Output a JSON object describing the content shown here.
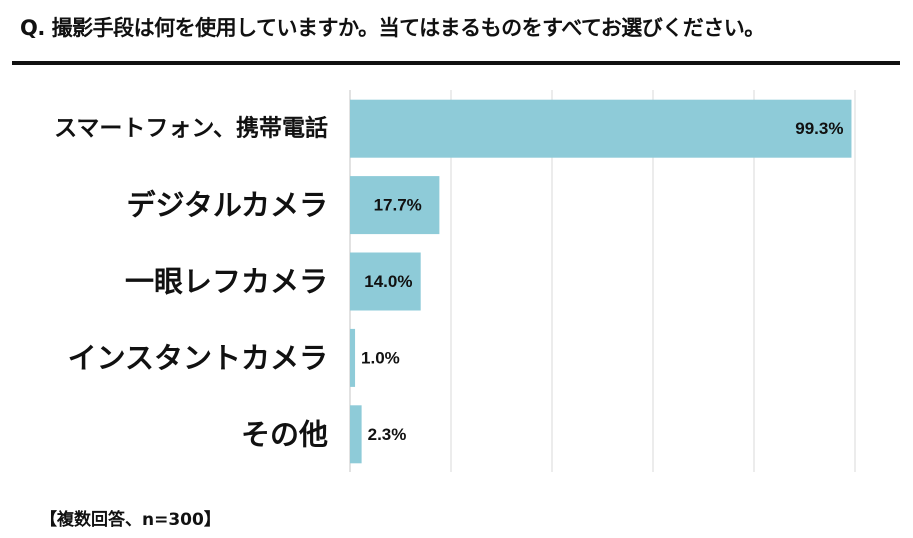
{
  "question": "Q. 撮影手段は何を使用していますか。当てはまるものをすべてお選びください。",
  "note": "【複数回答、n=300】",
  "chart_data": {
    "type": "bar",
    "orientation": "horizontal",
    "categories": [
      "スマートフォン、携帯電話",
      "デジタルカメラ",
      "一眼レフカメラ",
      "インスタントカメラ",
      "その他"
    ],
    "values": [
      99.3,
      17.7,
      14.0,
      1.0,
      2.3
    ],
    "value_labels": [
      "99.3%",
      "17.7%",
      "14.0%",
      "1.0%",
      "2.3%"
    ],
    "unit": "%",
    "xlim": [
      0,
      100
    ],
    "grid": true,
    "bar_color": "#8ecbd8",
    "grid_color": "#d9d9d9"
  }
}
